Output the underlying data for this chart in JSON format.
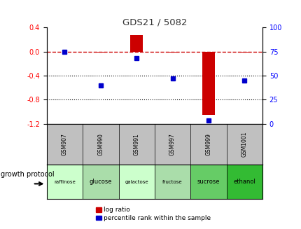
{
  "title": "GDS21 / 5082",
  "samples": [
    "GSM907",
    "GSM990",
    "GSM991",
    "GSM997",
    "GSM999",
    "GSM1001"
  ],
  "protocols": [
    "raffinose",
    "glucose",
    "galactose",
    "fructose",
    "sucrose",
    "ethanol"
  ],
  "log_ratios": [
    0.0,
    -0.02,
    0.28,
    -0.02,
    -1.05,
    -0.02
  ],
  "percentile_ranks": [
    75,
    40,
    68,
    47,
    3,
    45
  ],
  "ylim_left": [
    -1.2,
    0.4
  ],
  "ylim_right": [
    0,
    100
  ],
  "left_ticks": [
    0.4,
    0.0,
    -0.4,
    -0.8,
    -1.2
  ],
  "right_ticks": [
    100,
    75,
    50,
    25,
    0
  ],
  "bar_color": "#cc0000",
  "dot_color": "#0000cc",
  "dashed_line_color": "#cc0000",
  "sample_bg_color": "#c0c0c0",
  "protocol_colors": [
    "#ccffcc",
    "#aaddaa",
    "#ccffcc",
    "#aaddaa",
    "#66cc66",
    "#33bb33"
  ],
  "legend_items": [
    "log ratio",
    "percentile rank within the sample"
  ],
  "legend_colors": [
    "#cc0000",
    "#0000cc"
  ],
  "title_color": "#333333",
  "title_fontsize": 9.5,
  "tick_fontsize": 7,
  "sample_fontsize": 5.5,
  "proto_fontsize_small": 5.0,
  "proto_fontsize_large": 6.0,
  "legend_fontsize": 6.5,
  "growth_protocol_fontsize": 7
}
